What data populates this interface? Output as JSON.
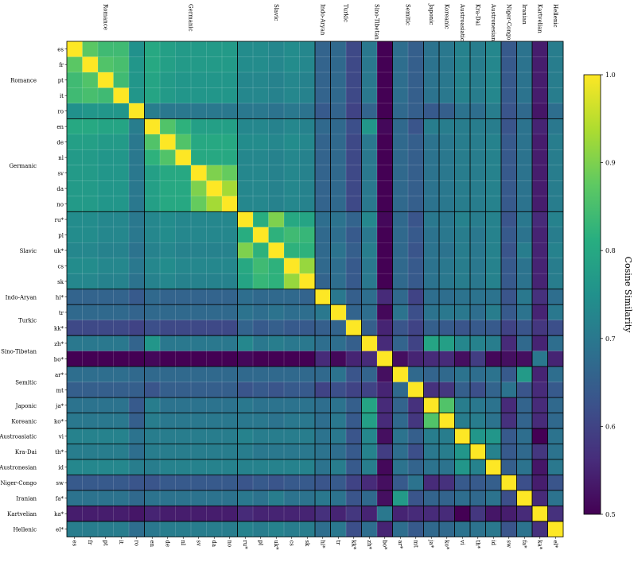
{
  "chart_data": {
    "type": "heatmap",
    "labels": [
      "es",
      "fr",
      "pt",
      "it",
      "ro",
      "en",
      "de",
      "nl",
      "sv",
      "da",
      "no",
      "ru*",
      "pl",
      "uk*",
      "cs",
      "sk",
      "hi*",
      "tr",
      "kk*",
      "zh*",
      "bo*",
      "ar*",
      "mt",
      "ja*",
      "ko*",
      "vi",
      "th*",
      "id",
      "sw",
      "fa*",
      "ka*",
      "el*"
    ],
    "families": [
      {
        "name": "Romance",
        "count": 5
      },
      {
        "name": "Germanic",
        "count": 6
      },
      {
        "name": "Slavic",
        "count": 5
      },
      {
        "name": "Indo-Aryan",
        "count": 1
      },
      {
        "name": "Turkic",
        "count": 2
      },
      {
        "name": "Sino-Tibetan",
        "count": 2
      },
      {
        "name": "Semitic",
        "count": 2
      },
      {
        "name": "Japonic",
        "count": 1
      },
      {
        "name": "Koreanic",
        "count": 1
      },
      {
        "name": "Austroasiatic",
        "count": 1
      },
      {
        "name": "Kra-Dai",
        "count": 1
      },
      {
        "name": "Austronesian",
        "count": 1
      },
      {
        "name": "Niger-Congo",
        "count": 1
      },
      {
        "name": "Iranian",
        "count": 1
      },
      {
        "name": "Kartvelian",
        "count": 1
      },
      {
        "name": "Hellenic",
        "count": 1
      }
    ],
    "colorbar": {
      "label": "Cosine Similarity",
      "min": 0.5,
      "max": 1.0,
      "ticks": [
        "0.5",
        "0.6",
        "0.7",
        "0.8",
        "0.9",
        "1.0"
      ]
    },
    "colormap": "viridis",
    "matrix": [
      [
        1.0,
        0.87,
        0.84,
        0.84,
        0.75,
        0.8,
        0.78,
        0.77,
        0.77,
        0.77,
        0.77,
        0.74,
        0.74,
        0.73,
        0.74,
        0.73,
        0.66,
        0.67,
        0.61,
        0.7,
        0.5,
        0.68,
        0.65,
        0.69,
        0.7,
        0.72,
        0.71,
        0.73,
        0.64,
        0.69,
        0.54,
        0.71
      ],
      [
        0.87,
        1.0,
        0.86,
        0.85,
        0.76,
        0.8,
        0.78,
        0.77,
        0.77,
        0.77,
        0.77,
        0.74,
        0.74,
        0.73,
        0.74,
        0.73,
        0.66,
        0.67,
        0.61,
        0.7,
        0.5,
        0.68,
        0.65,
        0.69,
        0.7,
        0.72,
        0.71,
        0.73,
        0.64,
        0.69,
        0.54,
        0.71
      ],
      [
        0.84,
        0.86,
        1.0,
        0.84,
        0.76,
        0.79,
        0.77,
        0.76,
        0.76,
        0.76,
        0.76,
        0.73,
        0.73,
        0.72,
        0.73,
        0.72,
        0.66,
        0.67,
        0.61,
        0.7,
        0.5,
        0.68,
        0.65,
        0.69,
        0.7,
        0.72,
        0.71,
        0.73,
        0.64,
        0.69,
        0.54,
        0.71
      ],
      [
        0.84,
        0.85,
        0.84,
        1.0,
        0.76,
        0.79,
        0.77,
        0.76,
        0.76,
        0.76,
        0.76,
        0.73,
        0.73,
        0.72,
        0.73,
        0.72,
        0.66,
        0.67,
        0.61,
        0.7,
        0.5,
        0.68,
        0.65,
        0.69,
        0.7,
        0.72,
        0.71,
        0.73,
        0.64,
        0.69,
        0.54,
        0.71
      ],
      [
        0.75,
        0.76,
        0.76,
        0.76,
        1.0,
        0.71,
        0.7,
        0.7,
        0.7,
        0.7,
        0.7,
        0.7,
        0.7,
        0.69,
        0.7,
        0.69,
        0.64,
        0.66,
        0.6,
        0.66,
        0.49,
        0.67,
        0.65,
        0.64,
        0.65,
        0.69,
        0.68,
        0.71,
        0.63,
        0.67,
        0.53,
        0.68
      ],
      [
        0.8,
        0.8,
        0.79,
        0.79,
        0.71,
        1.0,
        0.86,
        0.82,
        0.78,
        0.78,
        0.78,
        0.73,
        0.73,
        0.72,
        0.73,
        0.72,
        0.67,
        0.67,
        0.62,
        0.76,
        0.51,
        0.67,
        0.63,
        0.71,
        0.71,
        0.71,
        0.71,
        0.71,
        0.63,
        0.69,
        0.55,
        0.7
      ],
      [
        0.78,
        0.78,
        0.77,
        0.77,
        0.7,
        0.86,
        1.0,
        0.86,
        0.8,
        0.8,
        0.8,
        0.74,
        0.74,
        0.73,
        0.74,
        0.73,
        0.66,
        0.67,
        0.61,
        0.7,
        0.5,
        0.67,
        0.65,
        0.69,
        0.7,
        0.71,
        0.71,
        0.72,
        0.64,
        0.69,
        0.54,
        0.71
      ],
      [
        0.77,
        0.77,
        0.76,
        0.76,
        0.7,
        0.82,
        0.86,
        1.0,
        0.8,
        0.8,
        0.8,
        0.73,
        0.73,
        0.72,
        0.73,
        0.72,
        0.66,
        0.67,
        0.61,
        0.7,
        0.5,
        0.67,
        0.65,
        0.69,
        0.7,
        0.71,
        0.71,
        0.72,
        0.64,
        0.69,
        0.54,
        0.71
      ],
      [
        0.77,
        0.77,
        0.76,
        0.76,
        0.7,
        0.78,
        0.8,
        0.8,
        1.0,
        0.9,
        0.88,
        0.73,
        0.73,
        0.72,
        0.73,
        0.72,
        0.66,
        0.67,
        0.61,
        0.7,
        0.5,
        0.67,
        0.65,
        0.69,
        0.7,
        0.71,
        0.71,
        0.72,
        0.64,
        0.69,
        0.54,
        0.71
      ],
      [
        0.77,
        0.77,
        0.76,
        0.76,
        0.7,
        0.78,
        0.8,
        0.8,
        0.9,
        1.0,
        0.93,
        0.73,
        0.73,
        0.72,
        0.73,
        0.72,
        0.66,
        0.67,
        0.61,
        0.7,
        0.5,
        0.67,
        0.65,
        0.69,
        0.7,
        0.71,
        0.71,
        0.72,
        0.64,
        0.69,
        0.54,
        0.71
      ],
      [
        0.77,
        0.77,
        0.76,
        0.76,
        0.7,
        0.78,
        0.8,
        0.8,
        0.88,
        0.93,
        1.0,
        0.73,
        0.73,
        0.72,
        0.73,
        0.72,
        0.66,
        0.67,
        0.61,
        0.7,
        0.5,
        0.67,
        0.65,
        0.69,
        0.7,
        0.71,
        0.71,
        0.72,
        0.64,
        0.69,
        0.54,
        0.71
      ],
      [
        0.74,
        0.74,
        0.73,
        0.73,
        0.7,
        0.73,
        0.74,
        0.73,
        0.73,
        0.73,
        0.73,
        1.0,
        0.81,
        0.9,
        0.8,
        0.79,
        0.68,
        0.69,
        0.66,
        0.73,
        0.51,
        0.67,
        0.63,
        0.7,
        0.7,
        0.72,
        0.71,
        0.72,
        0.63,
        0.7,
        0.56,
        0.72
      ],
      [
        0.74,
        0.74,
        0.73,
        0.73,
        0.7,
        0.73,
        0.74,
        0.73,
        0.73,
        0.73,
        0.73,
        0.81,
        1.0,
        0.82,
        0.84,
        0.83,
        0.67,
        0.68,
        0.64,
        0.7,
        0.5,
        0.67,
        0.64,
        0.69,
        0.7,
        0.71,
        0.7,
        0.72,
        0.64,
        0.69,
        0.55,
        0.71
      ],
      [
        0.73,
        0.73,
        0.72,
        0.72,
        0.69,
        0.72,
        0.73,
        0.72,
        0.72,
        0.72,
        0.72,
        0.9,
        0.82,
        1.0,
        0.82,
        0.82,
        0.67,
        0.69,
        0.65,
        0.71,
        0.5,
        0.67,
        0.63,
        0.69,
        0.69,
        0.71,
        0.7,
        0.72,
        0.63,
        0.71,
        0.55,
        0.72
      ],
      [
        0.74,
        0.74,
        0.73,
        0.73,
        0.7,
        0.73,
        0.74,
        0.73,
        0.73,
        0.73,
        0.73,
        0.8,
        0.84,
        0.82,
        1.0,
        0.92,
        0.67,
        0.68,
        0.64,
        0.7,
        0.5,
        0.67,
        0.64,
        0.69,
        0.7,
        0.71,
        0.7,
        0.72,
        0.64,
        0.69,
        0.55,
        0.71
      ],
      [
        0.73,
        0.73,
        0.72,
        0.72,
        0.69,
        0.72,
        0.73,
        0.72,
        0.72,
        0.72,
        0.72,
        0.79,
        0.83,
        0.82,
        0.92,
        1.0,
        0.66,
        0.68,
        0.64,
        0.7,
        0.5,
        0.67,
        0.64,
        0.69,
        0.7,
        0.71,
        0.7,
        0.72,
        0.64,
        0.69,
        0.55,
        0.71
      ],
      [
        0.66,
        0.66,
        0.66,
        0.66,
        0.64,
        0.67,
        0.66,
        0.66,
        0.66,
        0.66,
        0.66,
        0.68,
        0.67,
        0.67,
        0.67,
        0.66,
        1.0,
        0.7,
        0.65,
        0.68,
        0.56,
        0.67,
        0.6,
        0.68,
        0.68,
        0.69,
        0.69,
        0.69,
        0.63,
        0.7,
        0.57,
        0.68
      ],
      [
        0.67,
        0.67,
        0.67,
        0.67,
        0.66,
        0.67,
        0.67,
        0.67,
        0.67,
        0.67,
        0.67,
        0.69,
        0.68,
        0.69,
        0.68,
        0.68,
        0.7,
        1.0,
        0.66,
        0.68,
        0.51,
        0.69,
        0.62,
        0.69,
        0.7,
        0.7,
        0.68,
        0.71,
        0.64,
        0.69,
        0.55,
        0.7
      ],
      [
        0.61,
        0.61,
        0.61,
        0.61,
        0.6,
        0.62,
        0.61,
        0.61,
        0.61,
        0.61,
        0.61,
        0.66,
        0.64,
        0.65,
        0.64,
        0.64,
        0.65,
        0.66,
        1.0,
        0.65,
        0.55,
        0.63,
        0.6,
        0.65,
        0.64,
        0.63,
        0.64,
        0.64,
        0.6,
        0.63,
        0.58,
        0.62
      ],
      [
        0.7,
        0.7,
        0.7,
        0.7,
        0.66,
        0.76,
        0.7,
        0.7,
        0.7,
        0.7,
        0.7,
        0.73,
        0.7,
        0.71,
        0.7,
        0.7,
        0.68,
        0.68,
        0.65,
        1.0,
        0.56,
        0.66,
        0.6,
        0.79,
        0.78,
        0.73,
        0.72,
        0.71,
        0.56,
        0.67,
        0.55,
        0.68
      ],
      [
        0.5,
        0.5,
        0.5,
        0.5,
        0.49,
        0.51,
        0.5,
        0.5,
        0.5,
        0.5,
        0.5,
        0.51,
        0.5,
        0.5,
        0.5,
        0.5,
        0.56,
        0.51,
        0.55,
        0.56,
        1.0,
        0.52,
        0.55,
        0.56,
        0.56,
        0.52,
        0.59,
        0.51,
        0.52,
        0.52,
        0.7,
        0.55
      ],
      [
        0.68,
        0.68,
        0.68,
        0.68,
        0.67,
        0.67,
        0.67,
        0.67,
        0.67,
        0.67,
        0.67,
        0.67,
        0.67,
        0.67,
        0.67,
        0.67,
        0.67,
        0.69,
        0.63,
        0.66,
        0.52,
        1.0,
        0.67,
        0.66,
        0.67,
        0.69,
        0.68,
        0.69,
        0.64,
        0.77,
        0.55,
        0.68
      ],
      [
        0.65,
        0.65,
        0.65,
        0.65,
        0.65,
        0.63,
        0.65,
        0.65,
        0.65,
        0.65,
        0.65,
        0.63,
        0.64,
        0.63,
        0.64,
        0.64,
        0.6,
        0.62,
        0.6,
        0.6,
        0.55,
        0.67,
        1.0,
        0.57,
        0.58,
        0.65,
        0.62,
        0.66,
        0.69,
        0.63,
        0.56,
        0.64
      ],
      [
        0.69,
        0.69,
        0.69,
        0.69,
        0.64,
        0.71,
        0.69,
        0.69,
        0.69,
        0.69,
        0.69,
        0.7,
        0.69,
        0.69,
        0.69,
        0.69,
        0.68,
        0.69,
        0.65,
        0.79,
        0.56,
        0.66,
        0.57,
        1.0,
        0.86,
        0.71,
        0.7,
        0.69,
        0.56,
        0.66,
        0.56,
        0.67
      ],
      [
        0.7,
        0.7,
        0.7,
        0.7,
        0.65,
        0.71,
        0.7,
        0.7,
        0.7,
        0.7,
        0.7,
        0.7,
        0.7,
        0.69,
        0.7,
        0.7,
        0.68,
        0.7,
        0.64,
        0.78,
        0.56,
        0.67,
        0.58,
        0.86,
        1.0,
        0.71,
        0.71,
        0.69,
        0.57,
        0.66,
        0.56,
        0.67
      ],
      [
        0.72,
        0.72,
        0.72,
        0.72,
        0.69,
        0.71,
        0.71,
        0.71,
        0.71,
        0.71,
        0.71,
        0.72,
        0.71,
        0.71,
        0.71,
        0.71,
        0.69,
        0.7,
        0.63,
        0.73,
        0.52,
        0.69,
        0.65,
        0.71,
        0.71,
        1.0,
        0.76,
        0.76,
        0.64,
        0.68,
        0.5,
        0.69
      ],
      [
        0.71,
        0.71,
        0.71,
        0.71,
        0.68,
        0.71,
        0.71,
        0.71,
        0.71,
        0.71,
        0.71,
        0.71,
        0.7,
        0.7,
        0.7,
        0.7,
        0.69,
        0.68,
        0.64,
        0.72,
        0.59,
        0.68,
        0.62,
        0.7,
        0.71,
        0.76,
        1.0,
        0.72,
        0.64,
        0.67,
        0.58,
        0.69
      ],
      [
        0.73,
        0.73,
        0.73,
        0.73,
        0.71,
        0.71,
        0.72,
        0.72,
        0.72,
        0.72,
        0.72,
        0.72,
        0.72,
        0.72,
        0.72,
        0.72,
        0.69,
        0.71,
        0.64,
        0.71,
        0.51,
        0.69,
        0.66,
        0.69,
        0.69,
        0.76,
        0.72,
        1.0,
        0.65,
        0.69,
        0.53,
        0.7
      ],
      [
        0.64,
        0.64,
        0.64,
        0.64,
        0.63,
        0.63,
        0.64,
        0.64,
        0.64,
        0.64,
        0.64,
        0.63,
        0.64,
        0.63,
        0.64,
        0.64,
        0.63,
        0.64,
        0.6,
        0.56,
        0.52,
        0.64,
        0.69,
        0.56,
        0.57,
        0.64,
        0.64,
        0.65,
        1.0,
        0.62,
        0.54,
        0.63
      ],
      [
        0.69,
        0.69,
        0.69,
        0.69,
        0.67,
        0.69,
        0.69,
        0.69,
        0.69,
        0.69,
        0.69,
        0.7,
        0.69,
        0.71,
        0.69,
        0.69,
        0.7,
        0.69,
        0.63,
        0.67,
        0.52,
        0.77,
        0.63,
        0.66,
        0.66,
        0.68,
        0.67,
        0.69,
        0.62,
        1.0,
        0.56,
        0.69
      ],
      [
        0.54,
        0.54,
        0.54,
        0.54,
        0.53,
        0.55,
        0.54,
        0.54,
        0.54,
        0.54,
        0.54,
        0.56,
        0.55,
        0.55,
        0.55,
        0.55,
        0.57,
        0.55,
        0.58,
        0.55,
        0.7,
        0.55,
        0.56,
        0.56,
        0.56,
        0.5,
        0.58,
        0.53,
        0.54,
        0.56,
        1.0,
        0.57
      ],
      [
        0.71,
        0.71,
        0.71,
        0.71,
        0.68,
        0.7,
        0.71,
        0.71,
        0.71,
        0.71,
        0.71,
        0.72,
        0.71,
        0.72,
        0.71,
        0.71,
        0.68,
        0.7,
        0.62,
        0.68,
        0.55,
        0.68,
        0.64,
        0.67,
        0.67,
        0.69,
        0.69,
        0.7,
        0.63,
        0.69,
        0.57,
        1.0
      ]
    ]
  }
}
